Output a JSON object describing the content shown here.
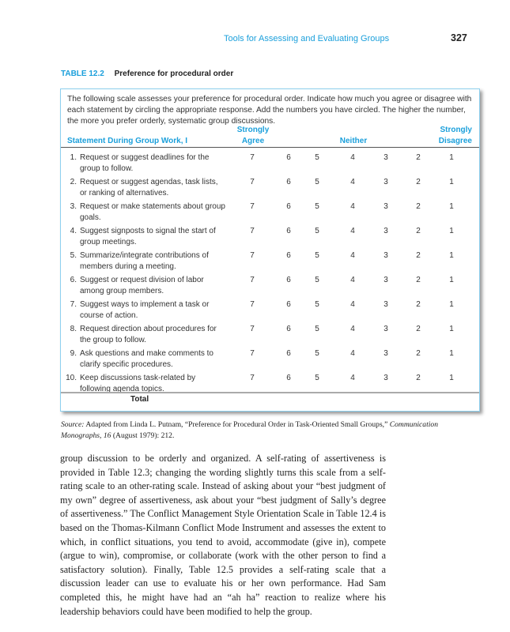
{
  "running_head": "Tools for Assessing and Evaluating Groups",
  "page_number": "327",
  "table": {
    "number": "TABLE 12.2",
    "title": "Preference for procedural order",
    "intro": "The following scale assesses your preference for procedural order. Indicate how much you agree or disagree with each statement by circling the appropriate response. Add the numbers you have circled. The higher the number, the more you prefer orderly, systematic group discussions.",
    "headers": {
      "statement": "Statement During Group Work, I",
      "agree": "Strongly Agree",
      "neither": "Neither",
      "disagree": "Strongly Disagree"
    },
    "scale": [
      "7",
      "6",
      "5",
      "4",
      "3",
      "2",
      "1"
    ],
    "rows": [
      {
        "n": "1.",
        "text": "Request or suggest deadlines for the group to follow."
      },
      {
        "n": "2.",
        "text": "Request or suggest agendas, task lists, or ranking of alternatives."
      },
      {
        "n": "3.",
        "text": "Request or make statements about group goals."
      },
      {
        "n": "4.",
        "text": "Suggest signposts to signal the start of group meetings."
      },
      {
        "n": "5.",
        "text": "Summarize/integrate contributions of members during a meeting."
      },
      {
        "n": "6.",
        "text": "Suggest or request division of labor among group members."
      },
      {
        "n": "7.",
        "text": "Suggest ways to implement a task or course of action."
      },
      {
        "n": "8.",
        "text": "Request direction about procedures for the group to follow."
      },
      {
        "n": "9.",
        "text": "Ask questions and make comments to clarify specific procedures."
      },
      {
        "n": "10.",
        "text": "Keep discussions task-related by following agenda topics."
      }
    ],
    "total_label": "Total"
  },
  "source": {
    "label": "Source:",
    "text": " Adapted from Linda L. Putnam, “Preference for Procedural Order in Task-Oriented Small Groups,” ",
    "journal": "Communication Monographs, 16",
    "rest": " (August 1979): 212."
  },
  "body": "group discussion to be orderly and organized. A self-rating of assertiveness is provided in Table 12.3; changing the wording slightly turns this scale from a self-rating scale to an other-rating scale. Instead of asking about your “best judgment of my own” degree of assertiveness, ask about your “best judgment of Sally’s degree of assertiveness.” The Conflict Management Style Orientation Scale in Table 12.4 is based on the Thomas-Kilmann Conflict Mode Instrument and assesses the extent to which, in conflict situations, you tend to avoid, accommodate (give in), compete (argue to win), compromise, or collaborate (work with the other person to find a satisfactory solution). Finally, Table 12.5 provides a self-rating scale that a discussion leader can use to evaluate his or her own performance. Had Sam completed this, he might have had an “ah ha” reaction to realize where his leadership behaviors could have been modified to help the group."
}
